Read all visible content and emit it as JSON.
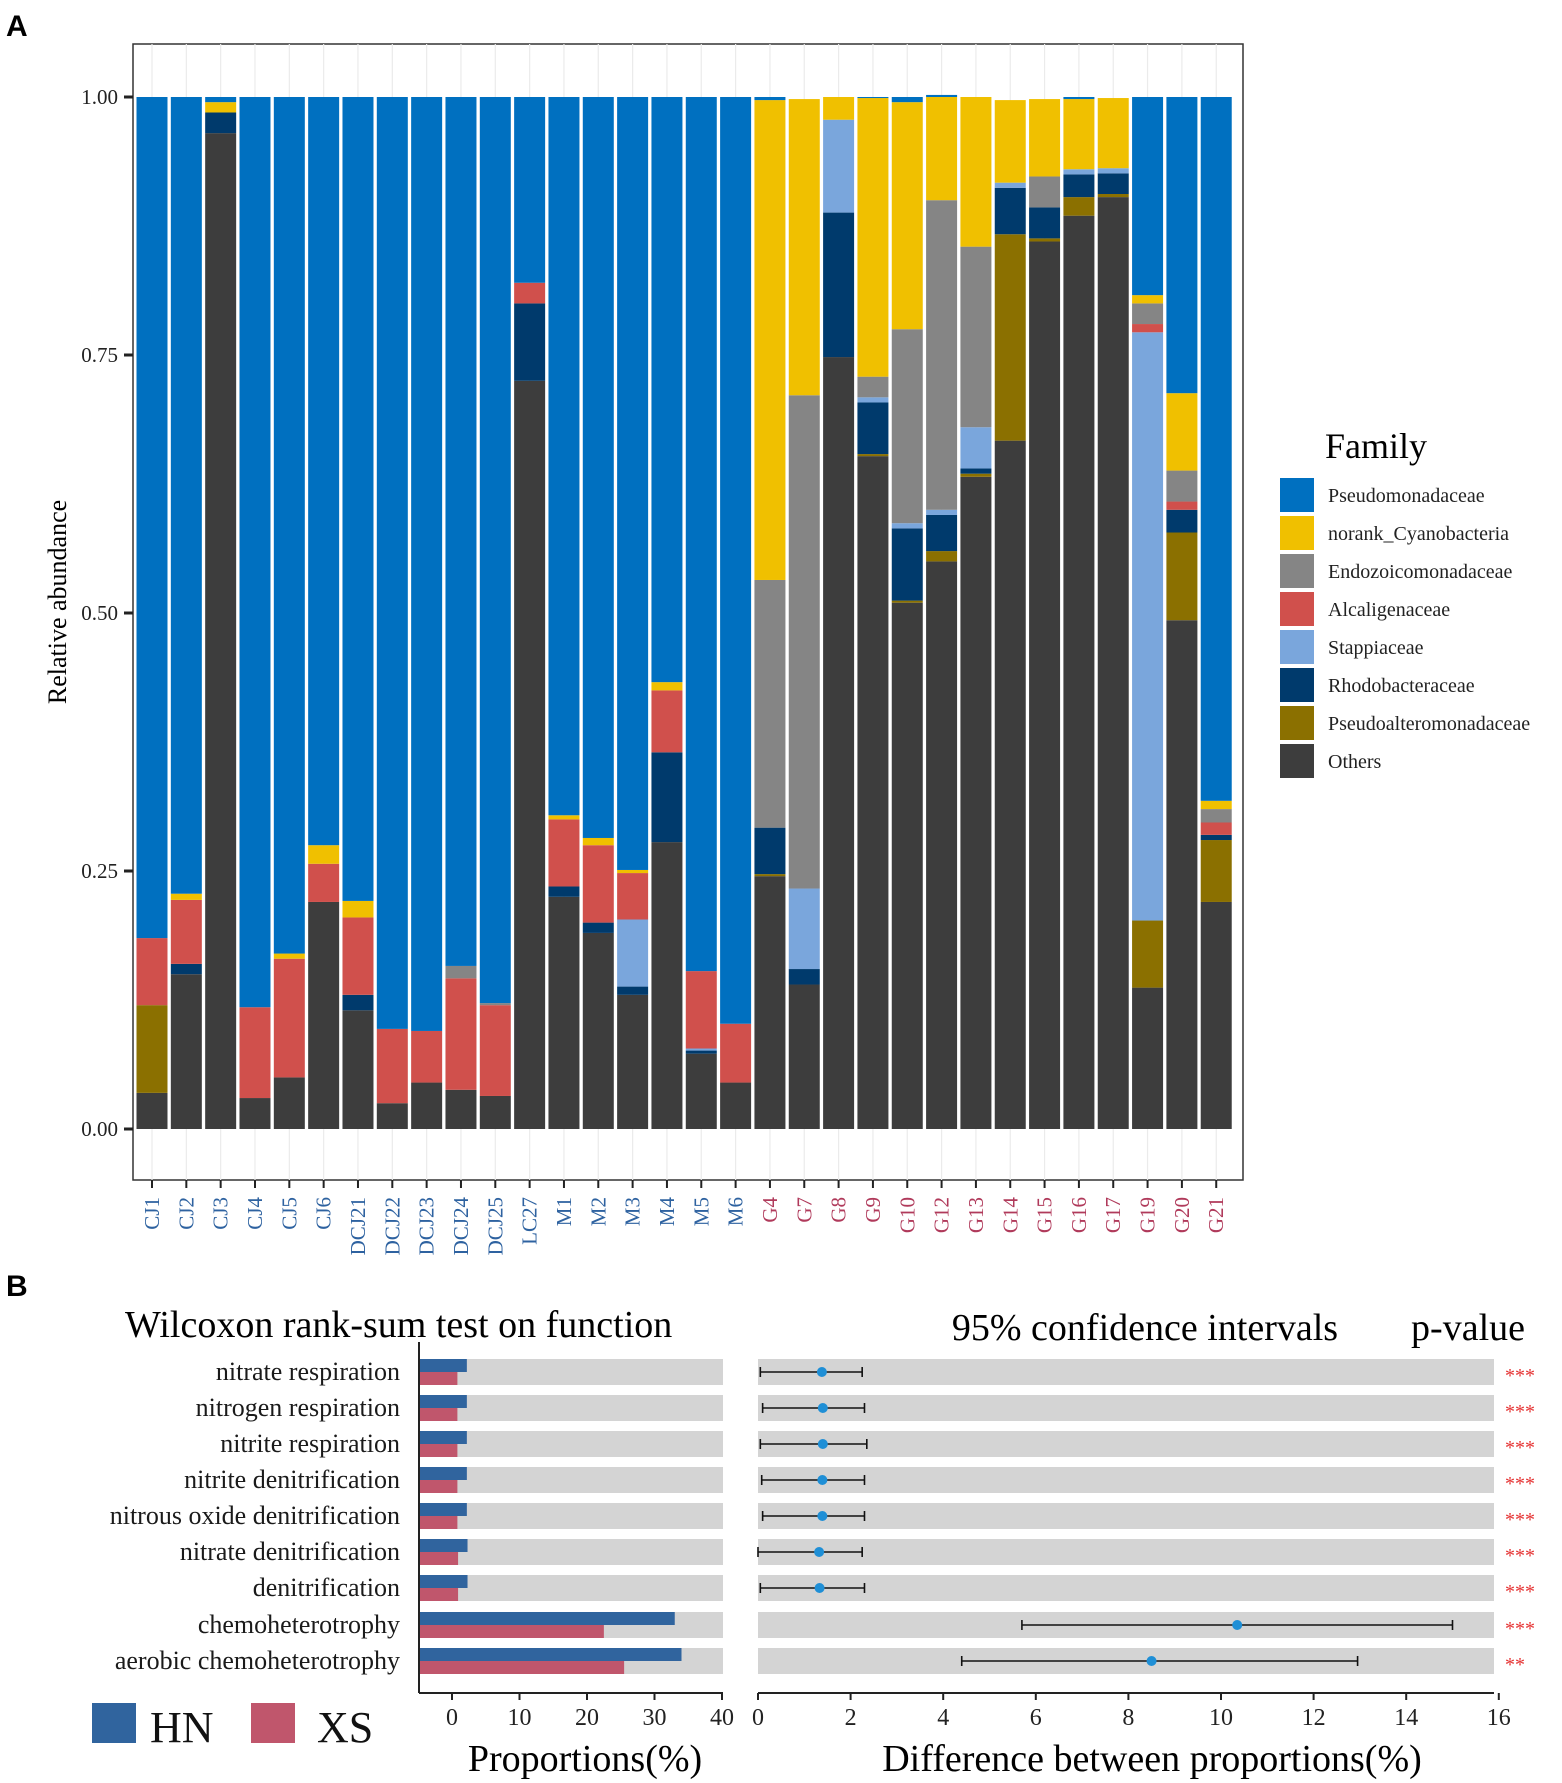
{
  "panels": {
    "a_label": "A",
    "b_label": "B"
  },
  "chart_data": [
    {
      "type": "stacked-bar",
      "panel": "A",
      "ylabel": "Relative abundance",
      "ylim": [
        0,
        1.05
      ],
      "yticks": [
        "0.00",
        "0.25",
        "0.50",
        "0.75",
        "1.00"
      ],
      "ytick_values": [
        0,
        0.25,
        0.5,
        0.75,
        1.0
      ],
      "legend_title": "Family",
      "legend_position": "right",
      "categories": [
        "CJ1",
        "CJ2",
        "CJ3",
        "CJ4",
        "CJ5",
        "CJ6",
        "DCJ21",
        "DCJ22",
        "DCJ23",
        "DCJ24",
        "DCJ25",
        "LC27",
        "M1",
        "M2",
        "M3",
        "M4",
        "M5",
        "M6",
        "G4",
        "G7",
        "G8",
        "G9",
        "G10",
        "G12",
        "G13",
        "G14",
        "G15",
        "G16",
        "G17",
        "G19",
        "G20",
        "G21"
      ],
      "category_groups": [
        "HN",
        "HN",
        "HN",
        "HN",
        "HN",
        "HN",
        "HN",
        "HN",
        "HN",
        "HN",
        "HN",
        "HN",
        "HN",
        "HN",
        "HN",
        "HN",
        "HN",
        "HN",
        "XS",
        "XS",
        "XS",
        "XS",
        "XS",
        "XS",
        "XS",
        "XS",
        "XS",
        "XS",
        "XS",
        "XS",
        "XS",
        "XS"
      ],
      "group_colors": {
        "HN": "#2e62a0",
        "XS": "#b03a5b"
      },
      "stack_order_bottom_to_top": [
        "Others",
        "Pseudoalteromonadaceae",
        "Rhodobacteraceae",
        "Stappiaceae",
        "Alcaligenaceae",
        "Endozoicomonadaceae",
        "norank_Cyanobacteria",
        "Pseudomonadaceae"
      ],
      "legend_order": [
        "Pseudomonadaceae",
        "norank_Cyanobacteria",
        "Endozoicomonadaceae",
        "Alcaligenaceae",
        "Stappiaceae",
        "Rhodobacteraceae",
        "Pseudoalteromonadaceae",
        "Others"
      ],
      "colors": {
        "Pseudomonadaceae": "#0070c0",
        "norank_Cyanobacteria": "#f0c000",
        "Endozoicomonadaceae": "#858585",
        "Alcaligenaceae": "#d0504c",
        "Stappiaceae": "#7aa6dc",
        "Rhodobacteraceae": "#003a6c",
        "Pseudoalteromonadaceae": "#8b7000",
        "Others": "#3d3d3d"
      },
      "series": [
        {
          "name": "Others",
          "values": [
            0.035,
            0.15,
            0.965,
            0.03,
            0.05,
            0.22,
            0.115,
            0.025,
            0.045,
            0.038,
            0.032,
            0.725,
            0.225,
            0.19,
            0.13,
            0.278,
            0.073,
            0.045,
            0.245,
            0.14,
            0.748,
            0.652,
            0.51,
            0.55,
            0.632,
            0.667,
            0.86,
            0.885,
            0.903,
            0.137,
            0.493,
            0.22
          ]
        },
        {
          "name": "Pseudoalteromonadaceae",
          "values": [
            0.085,
            0,
            0,
            0,
            0,
            0,
            0,
            0,
            0,
            0,
            0,
            0,
            0,
            0,
            0,
            0,
            0,
            0,
            0.002,
            0,
            0,
            0.002,
            0.002,
            0.01,
            0.003,
            0.2,
            0.003,
            0.018,
            0.003,
            0.065,
            0.085,
            0.06
          ]
        },
        {
          "name": "Rhodobacteraceae",
          "values": [
            0,
            0.01,
            0.02,
            0,
            0,
            0,
            0.015,
            0,
            0,
            0,
            0,
            0.075,
            0.01,
            0.01,
            0.008,
            0.087,
            0.003,
            0,
            0.045,
            0.015,
            0.14,
            0.05,
            0.07,
            0.035,
            0.005,
            0.045,
            0.03,
            0.022,
            0.02,
            0,
            0.022,
            0.005
          ]
        },
        {
          "name": "Stappiaceae",
          "values": [
            0,
            0,
            0,
            0,
            0,
            0,
            0,
            0,
            0,
            0,
            0,
            0,
            0,
            0,
            0.065,
            0,
            0.002,
            0,
            0,
            0.078,
            0.09,
            0.005,
            0.005,
            0.005,
            0.04,
            0.005,
            0,
            0.005,
            0.005,
            0.57,
            0,
            0
          ]
        },
        {
          "name": "Alcaligenaceae",
          "values": [
            0.065,
            0.062,
            0,
            0.088,
            0.115,
            0.037,
            0.075,
            0.072,
            0.05,
            0.108,
            0.088,
            0.02,
            0.065,
            0.075,
            0.045,
            0.06,
            0.075,
            0.057,
            0,
            0,
            0,
            0,
            0,
            0,
            0,
            0,
            0,
            0,
            0,
            0.008,
            0.008,
            0.012
          ]
        },
        {
          "name": "Endozoicomonadaceae",
          "values": [
            0,
            0,
            0,
            0,
            0,
            0,
            0,
            0,
            0,
            0.012,
            0.002,
            0,
            0,
            0,
            0,
            0,
            0,
            0,
            0.24,
            0.478,
            0,
            0.02,
            0.188,
            0.3,
            0.175,
            0,
            0.03,
            0,
            0,
            0.02,
            0.03,
            0.013
          ]
        },
        {
          "name": "norank_Cyanobacteria",
          "values": [
            0,
            0.006,
            0.01,
            0,
            0.005,
            0.018,
            0.016,
            0,
            0,
            0,
            0,
            0,
            0.004,
            0.007,
            0.003,
            0.008,
            0,
            0,
            0.465,
            0.287,
            0.022,
            0.27,
            0.22,
            0.1,
            0.145,
            0.08,
            0.075,
            0.068,
            0.068,
            0.008,
            0.075,
            0.008
          ]
        },
        {
          "name": "Pseudomonadaceae",
          "values": [
            0.815,
            0.772,
            0.005,
            0.882,
            0.83,
            0.725,
            0.779,
            0.903,
            0.905,
            0.842,
            0.878,
            0.18,
            0.696,
            0.718,
            0.749,
            0.567,
            0.847,
            0.898,
            0.003,
            0,
            0,
            0.001,
            0.005,
            0.002,
            0,
            0,
            0,
            0.002,
            0,
            0.192,
            0.287,
            0.682
          ]
        }
      ]
    },
    {
      "type": "bar",
      "panel": "B-left",
      "title": "Wilcoxon rank-sum test on function",
      "xlabel": "Proportions(%)",
      "xlim": [
        -5,
        40
      ],
      "xticks": [
        "0",
        "10",
        "20",
        "30",
        "40"
      ],
      "xtick_values": [
        0,
        10,
        20,
        30,
        40
      ],
      "categories": [
        "nitrate respiration",
        "nitrogen respiration",
        "nitrite respiration",
        "nitrite denitrification",
        "nitrous oxide denitrification",
        "nitrate denitrification",
        "denitrification",
        "chemoheterotrophy",
        "aerobic chemoheterotrophy"
      ],
      "series": [
        {
          "name": "HN",
          "color": "#30649e",
          "values": [
            2.2,
            2.2,
            2.2,
            2.2,
            2.2,
            2.3,
            2.3,
            33.0,
            34.0
          ]
        },
        {
          "name": "XS",
          "color": "#c0566c",
          "values": [
            0.8,
            0.8,
            0.8,
            0.8,
            0.8,
            0.9,
            0.9,
            22.5,
            25.5
          ]
        }
      ],
      "legend": [
        {
          "name": "HN",
          "color": "#30649e"
        },
        {
          "name": "XS",
          "color": "#c0566c"
        }
      ]
    },
    {
      "type": "errorbar",
      "panel": "B-right",
      "title": "95% confidence intervals",
      "pvalue_header": "p-value",
      "xlabel": "Difference between proportions(%)",
      "xlim": [
        0,
        16
      ],
      "xticks": [
        "0",
        "2",
        "4",
        "6",
        "8",
        "10",
        "12",
        "14",
        "16"
      ],
      "xtick_values": [
        0,
        2,
        4,
        6,
        8,
        10,
        12,
        14,
        16
      ],
      "categories": [
        "nitrate respiration",
        "nitrogen respiration",
        "nitrite respiration",
        "nitrite denitrification",
        "nitrous oxide denitrification",
        "nitrate denitrification",
        "denitrification",
        "chemoheterotrophy",
        "aerobic chemoheterotrophy"
      ],
      "estimate": [
        1.38,
        1.4,
        1.4,
        1.39,
        1.39,
        1.32,
        1.33,
        10.35,
        8.5
      ],
      "ci_low": [
        0.05,
        0.1,
        0.05,
        0.08,
        0.1,
        0.0,
        0.05,
        5.7,
        4.4
      ],
      "ci_high": [
        2.25,
        2.3,
        2.35,
        2.3,
        2.3,
        2.25,
        2.3,
        15.0,
        12.95
      ],
      "pvalues": [
        "***",
        "***",
        "***",
        "***",
        "***",
        "***",
        "***",
        "***",
        "**"
      ],
      "point_color": "#1f8fd6",
      "pvalue_color": "#e53030"
    }
  ]
}
